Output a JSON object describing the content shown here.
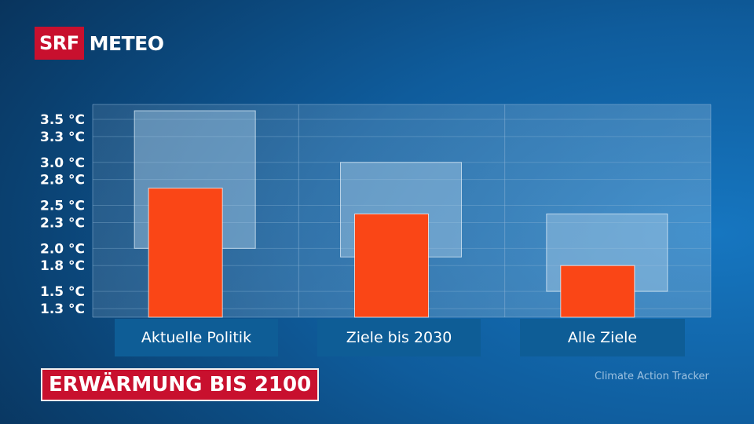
{
  "logo": {
    "srf": "SRF",
    "meteo": "METEO"
  },
  "title": "ERWÄRMUNG BIS 2100",
  "source": "Climate Action Tracker",
  "chart_data": {
    "type": "bar",
    "categories": [
      "Aktuelle Politik",
      "Ziele bis 2030",
      "Alle Ziele"
    ],
    "series": [
      {
        "values": [
          2.7,
          2.4,
          1.8
        ]
      }
    ],
    "ranges": [
      {
        "low": 2.0,
        "high": 3.6
      },
      {
        "low": 1.9,
        "high": 3.0
      },
      {
        "low": 1.5,
        "high": 2.4
      }
    ],
    "yticks": [
      "3.5 °C",
      "3.3 °C",
      "3.0 °C",
      "2.8 °C",
      "2.5 °C",
      "2.3 °C",
      "2.0 °C",
      "1.8 °C",
      "1.5 °C",
      "1.3 °C"
    ],
    "ytick_values": [
      3.5,
      3.3,
      3.0,
      2.8,
      2.5,
      2.3,
      2.0,
      1.8,
      1.5,
      1.3
    ],
    "ylim": [
      1.3,
      3.5
    ],
    "grid": true,
    "colors": {
      "bar": "#fa4616",
      "range": "#a9cbe6",
      "grid": "#8fb6d8"
    }
  }
}
